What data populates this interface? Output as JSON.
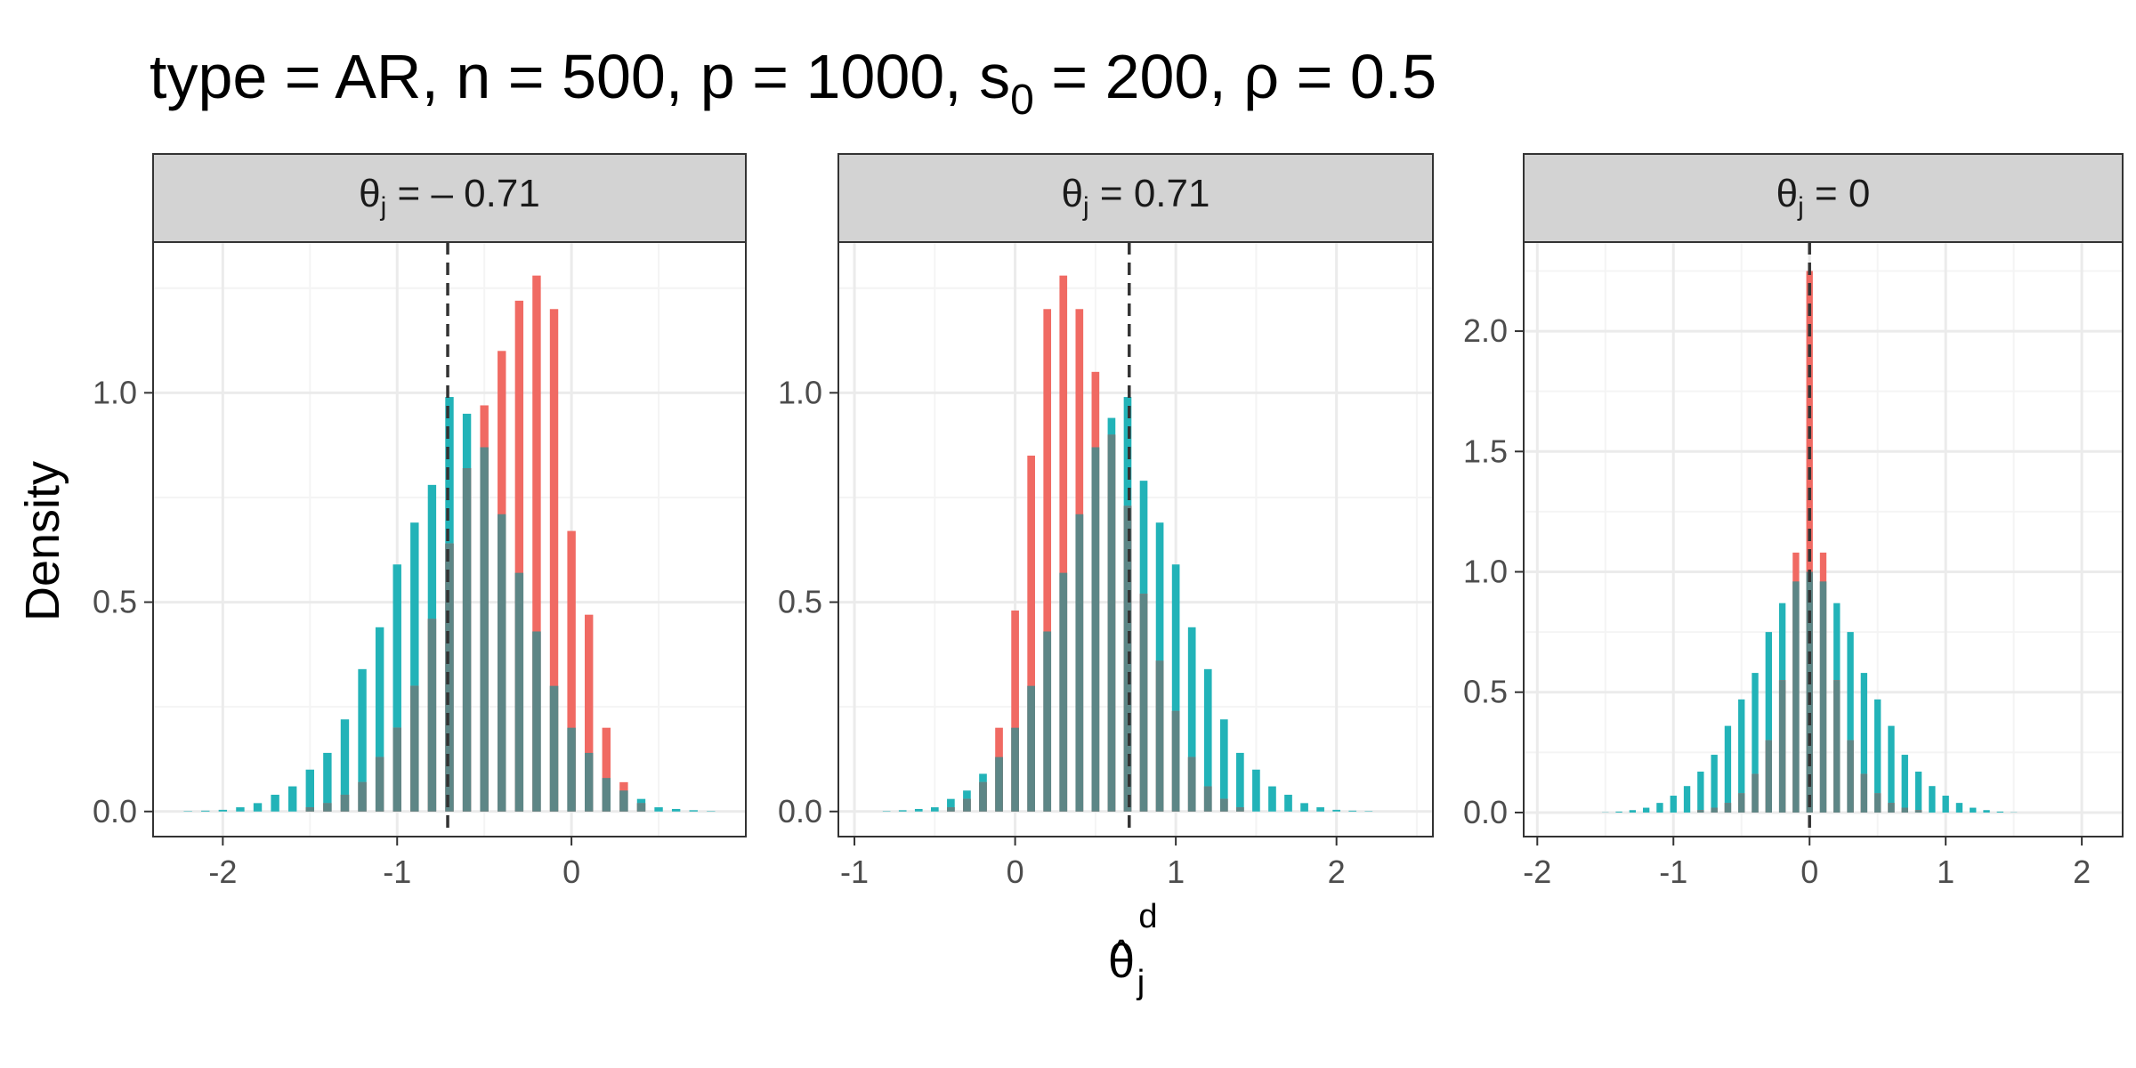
{
  "title": {
    "prefix": "type = AR, n = 500, p = 1000, s",
    "sub": "0",
    "suffix": " = 200, ρ = 0.5"
  },
  "ylabel": "Density",
  "xlabel": {
    "base": "θ",
    "hat": "^",
    "sub": "j",
    "sup": "d"
  },
  "colors": {
    "series_red": "#F06A63",
    "series_teal": "#22B3B8",
    "overlap": "#5D8686",
    "strip_fill": "#D3D3D3",
    "grid_major": "#EBEBEB",
    "grid_minor": "#F4F4F4",
    "panel_border": "#333333",
    "tick_text": "#4D4D4D",
    "ref_line": "#333333"
  },
  "chart_data": [
    {
      "type": "bar",
      "strip": {
        "base": "θ",
        "sub": "j",
        "rest": " = – 0.71"
      },
      "x": [
        -2.2,
        -2.1,
        -2.0,
        -1.9,
        -1.8,
        -1.7,
        -1.6,
        -1.5,
        -1.4,
        -1.3,
        -1.2,
        -1.1,
        -1.0,
        -0.9,
        -0.8,
        -0.7,
        -0.6,
        -0.5,
        -0.4,
        -0.3,
        -0.2,
        -0.1,
        0.0,
        0.1,
        0.2,
        0.3,
        0.4,
        0.5,
        0.6,
        0.7,
        0.8
      ],
      "series": [
        {
          "values": [
            0,
            0,
            0,
            0,
            0,
            0,
            0,
            0.01,
            0.02,
            0.04,
            0.07,
            0.13,
            0.2,
            0.3,
            0.46,
            0.64,
            0.82,
            0.97,
            1.1,
            1.22,
            1.28,
            1.2,
            0.67,
            0.47,
            0.2,
            0.07,
            0.02,
            0,
            0,
            0,
            0
          ]
        },
        {
          "values": [
            0.001,
            0.002,
            0.004,
            0.01,
            0.02,
            0.04,
            0.06,
            0.1,
            0.14,
            0.22,
            0.34,
            0.44,
            0.59,
            0.69,
            0.78,
            0.99,
            0.95,
            0.87,
            0.71,
            0.57,
            0.43,
            0.3,
            0.2,
            0.14,
            0.08,
            0.05,
            0.03,
            0.01,
            0.006,
            0.003,
            0.001
          ]
        }
      ],
      "ref_x": -0.71,
      "xlim": [
        -2.4,
        1.0
      ],
      "ylim": [
        -0.06,
        1.36
      ],
      "xticks": [
        -2,
        -1,
        0
      ],
      "xtick_labels": [
        "-2",
        "-1",
        "0"
      ],
      "yticks": [
        0.0,
        0.5,
        1.0
      ],
      "ytick_labels": [
        "0.0",
        "0.5",
        "1.0"
      ]
    },
    {
      "type": "bar",
      "strip": {
        "base": "θ",
        "sub": "j",
        "rest": " = 0.71"
      },
      "x": [
        -0.8,
        -0.7,
        -0.6,
        -0.5,
        -0.4,
        -0.3,
        -0.2,
        -0.1,
        0.0,
        0.1,
        0.2,
        0.3,
        0.4,
        0.5,
        0.6,
        0.7,
        0.8,
        0.9,
        1.0,
        1.1,
        1.2,
        1.3,
        1.4,
        1.5,
        1.6,
        1.7,
        1.8,
        1.9,
        2.0,
        2.1,
        2.2
      ],
      "series": [
        {
          "values": [
            0,
            0,
            0,
            0,
            0.01,
            0.03,
            0.07,
            0.2,
            0.48,
            0.85,
            1.2,
            1.28,
            1.2,
            1.05,
            0.9,
            0.73,
            0.52,
            0.36,
            0.24,
            0.13,
            0.06,
            0.03,
            0.01,
            0,
            0,
            0,
            0,
            0,
            0,
            0,
            0
          ]
        },
        {
          "values": [
            0.001,
            0.003,
            0.006,
            0.01,
            0.03,
            0.05,
            0.09,
            0.13,
            0.2,
            0.3,
            0.43,
            0.57,
            0.71,
            0.87,
            0.94,
            0.99,
            0.79,
            0.69,
            0.59,
            0.44,
            0.34,
            0.22,
            0.14,
            0.1,
            0.06,
            0.04,
            0.02,
            0.01,
            0.004,
            0.002,
            0.001
          ]
        }
      ],
      "ref_x": 0.71,
      "xlim": [
        -1.1,
        2.6
      ],
      "ylim": [
        -0.06,
        1.36
      ],
      "xticks": [
        -1,
        0,
        1,
        2
      ],
      "xtick_labels": [
        "-1",
        "0",
        "1",
        "2"
      ],
      "yticks": [
        0.0,
        0.5,
        1.0
      ],
      "ytick_labels": [
        "0.0",
        "0.5",
        "1.0"
      ]
    },
    {
      "type": "bar",
      "strip": {
        "base": "θ",
        "sub": "j",
        "rest": " = 0"
      },
      "x": [
        -1.5,
        -1.4,
        -1.3,
        -1.2,
        -1.1,
        -1.0,
        -0.9,
        -0.8,
        -0.7,
        -0.6,
        -0.5,
        -0.4,
        -0.3,
        -0.2,
        -0.1,
        0.0,
        0.1,
        0.2,
        0.3,
        0.4,
        0.5,
        0.6,
        0.7,
        0.8,
        0.9,
        1.0,
        1.1,
        1.2,
        1.3,
        1.4,
        1.5
      ],
      "series": [
        {
          "values": [
            0,
            0,
            0,
            0,
            0,
            0,
            0,
            0.01,
            0.02,
            0.04,
            0.08,
            0.16,
            0.3,
            0.55,
            1.08,
            2.25,
            1.08,
            0.55,
            0.3,
            0.16,
            0.08,
            0.04,
            0.02,
            0.01,
            0,
            0,
            0,
            0,
            0,
            0,
            0
          ]
        },
        {
          "values": [
            0.001,
            0.004,
            0.01,
            0.02,
            0.04,
            0.07,
            0.11,
            0.17,
            0.24,
            0.36,
            0.47,
            0.58,
            0.75,
            0.87,
            0.96,
            1.0,
            0.96,
            0.87,
            0.75,
            0.58,
            0.47,
            0.36,
            0.24,
            0.17,
            0.11,
            0.07,
            0.04,
            0.02,
            0.01,
            0.004,
            0.001
          ]
        }
      ],
      "ref_x": 0,
      "xlim": [
        -2.1,
        2.3
      ],
      "ylim": [
        -0.1,
        2.37
      ],
      "xticks": [
        -2,
        -1,
        0,
        1,
        2
      ],
      "xtick_labels": [
        "-2",
        "-1",
        "0",
        "1",
        "2"
      ],
      "yticks": [
        0.0,
        0.5,
        1.0,
        1.5,
        2.0
      ],
      "ytick_labels": [
        "0.0",
        "0.5",
        "1.0",
        "1.5",
        "2.0"
      ]
    }
  ]
}
